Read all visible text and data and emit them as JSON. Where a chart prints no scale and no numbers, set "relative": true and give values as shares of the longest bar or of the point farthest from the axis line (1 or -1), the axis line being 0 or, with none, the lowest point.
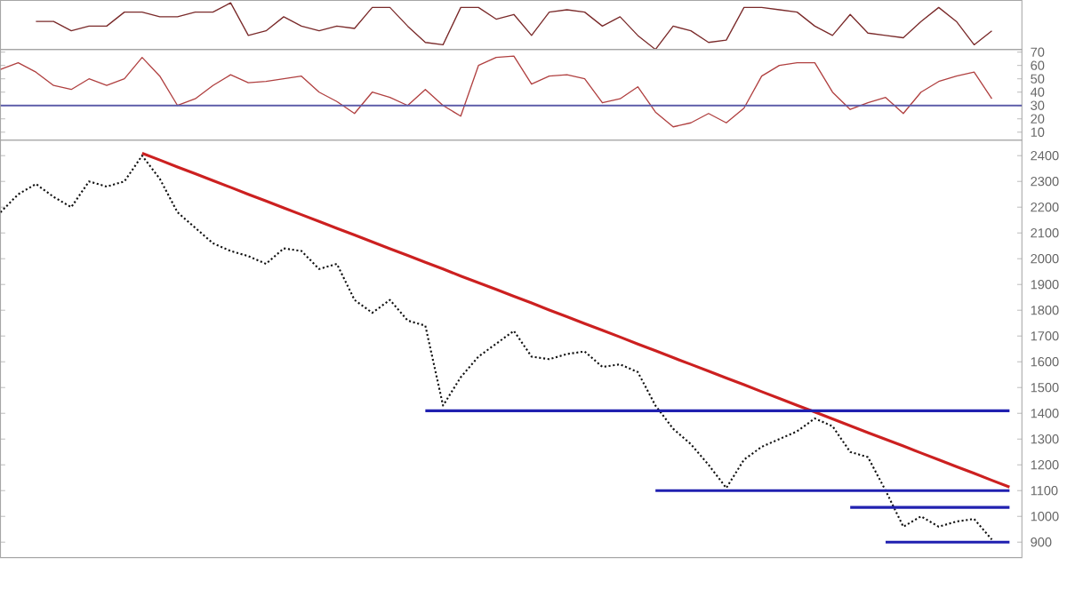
{
  "chart_data": [
    {
      "type": "line",
      "relative": true,
      "tick_labels": false,
      "categories": [
        null,
        null,
        null,
        null,
        null,
        null,
        null,
        null,
        null,
        null,
        null,
        null,
        null,
        null,
        null,
        null,
        null,
        null,
        null,
        null,
        null,
        null,
        null,
        null,
        null,
        null,
        null,
        null,
        null,
        null,
        null,
        null,
        null,
        null,
        null,
        null,
        null,
        null,
        null,
        null,
        null,
        null,
        null,
        null,
        null,
        null,
        null,
        null,
        null,
        null,
        null,
        null,
        null,
        null,
        null,
        null,
        null,
        null
      ],
      "series": [
        {
          "color": "#7a2a2a",
          "values": [
            null,
            null,
            0.6,
            0.6,
            0.4,
            0.5,
            0.5,
            0.8,
            0.8,
            0.7,
            0.7,
            0.8,
            0.8,
            1.0,
            0.3,
            0.4,
            0.7,
            0.5,
            0.4,
            0.5,
            0.45,
            0.9,
            0.9,
            0.5,
            0.15,
            0.1,
            0.9,
            0.9,
            0.65,
            0.75,
            0.3,
            0.8,
            0.85,
            0.8,
            0.5,
            0.7,
            0.3,
            0,
            0.5,
            0.4,
            0.15,
            0.2,
            0.9,
            0.9,
            0.85,
            0.8,
            0.5,
            0.3,
            0.75,
            0.35,
            0.3,
            0.25,
            0.6,
            0.9,
            0.6,
            0.1,
            0.4,
            null
          ]
        }
      ]
    },
    {
      "type": "line",
      "tick_labels": "y",
      "ylim": [
        4,
        72
      ],
      "yticks": [
        10,
        20,
        30,
        40,
        50,
        60,
        70
      ],
      "categories": [
        null,
        null,
        null,
        null,
        null,
        null,
        null,
        null,
        null,
        null,
        null,
        null,
        null,
        null,
        null,
        null,
        null,
        null,
        null,
        null,
        null,
        null,
        null,
        null,
        null,
        null,
        null,
        null,
        null,
        null,
        null,
        null,
        null,
        null,
        null,
        null,
        null,
        null,
        null,
        null,
        null,
        null,
        null,
        null,
        null,
        null,
        null,
        null,
        null,
        null,
        null,
        null,
        null,
        null,
        null,
        null,
        null,
        null
      ],
      "ref_lines": [
        {
          "axis": "y",
          "value": 30,
          "color": "#5a5aa8"
        }
      ],
      "series": [
        {
          "color": "#b04040",
          "values": [
            57,
            62,
            55,
            45,
            42,
            50,
            45,
            50,
            66,
            52,
            30,
            35,
            45,
            53,
            47,
            48,
            50,
            52,
            40,
            33,
            24,
            40,
            36,
            30,
            42,
            30,
            22,
            60,
            66,
            67,
            46,
            52,
            53,
            50,
            32,
            35,
            44,
            25,
            14,
            17,
            24,
            17,
            28,
            52,
            60,
            62,
            62,
            40,
            27,
            32,
            36,
            24,
            40,
            48,
            52,
            55,
            35,
            null
          ]
        }
      ]
    },
    {
      "type": "line",
      "tick_labels": "y",
      "ylim": [
        840,
        2460
      ],
      "yticks": [
        900,
        1000,
        1100,
        1200,
        1300,
        1400,
        1500,
        1600,
        1700,
        1800,
        1900,
        2000,
        2100,
        2200,
        2300,
        2400
      ],
      "categories": [
        null,
        null,
        null,
        null,
        null,
        null,
        null,
        null,
        null,
        null,
        null,
        null,
        null,
        null,
        null,
        null,
        null,
        null,
        null,
        null,
        null,
        null,
        null,
        null,
        null,
        null,
        null,
        null,
        null,
        null,
        null,
        null,
        null,
        null,
        null,
        null,
        null,
        null,
        null,
        null,
        null,
        null,
        null,
        null,
        null,
        null,
        null,
        null,
        null,
        null,
        null,
        null,
        null,
        null,
        null,
        null,
        null,
        null
      ],
      "series": [
        {
          "color": "#111111",
          "line_style": "dotted",
          "values": [
            2180,
            2250,
            2290,
            2240,
            2200,
            2300,
            2280,
            2300,
            2400,
            2310,
            2180,
            2120,
            2060,
            2030,
            2010,
            1980,
            2040,
            2030,
            1960,
            1980,
            1840,
            1790,
            1840,
            1760,
            1740,
            1430,
            1540,
            1620,
            1670,
            1720,
            1620,
            1610,
            1630,
            1640,
            1580,
            1590,
            1560,
            1430,
            1340,
            1280,
            1200,
            1110,
            1220,
            1270,
            1300,
            1330,
            1380,
            1350,
            1250,
            1230,
            1100,
            960,
            1000,
            960,
            980,
            990,
            910,
            null
          ]
        },
        {
          "color": "#cc2020",
          "values": [
            null,
            null,
            null,
            null,
            null,
            null,
            null,
            null,
            2409,
            2383,
            2356,
            2330,
            2303,
            2277,
            2250,
            2224,
            2197,
            2171,
            2145,
            2118,
            2092,
            2065,
            2039,
            2013,
            1986,
            1960,
            1933,
            1907,
            1881,
            1854,
            1828,
            1801,
            1775,
            1748,
            1722,
            1696,
            1669,
            1643,
            1616,
            1590,
            1564,
            1537,
            1511,
            1484,
            1458,
            1431,
            1405,
            1378,
            1352,
            1325,
            1299,
            1273,
            1246,
            1220,
            1193,
            1167,
            1140,
            1114
          ]
        },
        {
          "color": "#2020b0",
          "values": [
            null,
            null,
            null,
            null,
            null,
            null,
            null,
            null,
            null,
            null,
            null,
            null,
            null,
            null,
            null,
            null,
            null,
            null,
            null,
            null,
            null,
            null,
            null,
            null,
            1410,
            1410,
            1410,
            1410,
            1410,
            1410,
            1410,
            1410,
            1410,
            1410,
            1410,
            1410,
            1410,
            1410,
            1410,
            1410,
            1410,
            1410,
            1410,
            1410,
            1410,
            1410,
            1410,
            1410,
            1410,
            1410,
            1410,
            1410,
            1410,
            1410,
            1410,
            1410,
            1410,
            1410
          ]
        },
        {
          "color": "#2020b0",
          "values": [
            null,
            null,
            null,
            null,
            null,
            null,
            null,
            null,
            null,
            null,
            null,
            null,
            null,
            null,
            null,
            null,
            null,
            null,
            null,
            null,
            null,
            null,
            null,
            null,
            null,
            null,
            null,
            null,
            null,
            null,
            null,
            null,
            null,
            null,
            null,
            null,
            null,
            1100,
            1100,
            1100,
            1100,
            1100,
            1100,
            1100,
            1100,
            1100,
            1100,
            1100,
            1100,
            1100,
            1100,
            1100,
            1100,
            1100,
            1100,
            1100,
            1100,
            1100
          ]
        },
        {
          "color": "#2020b0",
          "values": [
            null,
            null,
            null,
            null,
            null,
            null,
            null,
            null,
            null,
            null,
            null,
            null,
            null,
            null,
            null,
            null,
            null,
            null,
            null,
            null,
            null,
            null,
            null,
            null,
            null,
            null,
            null,
            null,
            null,
            null,
            null,
            null,
            null,
            null,
            null,
            null,
            null,
            null,
            null,
            null,
            null,
            null,
            null,
            null,
            null,
            null,
            null,
            null,
            1035,
            1035,
            1035,
            1035,
            1035,
            1035,
            1035,
            1035,
            1035,
            1035
          ]
        },
        {
          "color": "#2020b0",
          "values": [
            null,
            null,
            null,
            null,
            null,
            null,
            null,
            null,
            null,
            null,
            null,
            null,
            null,
            null,
            null,
            null,
            null,
            null,
            null,
            null,
            null,
            null,
            null,
            null,
            null,
            null,
            null,
            null,
            null,
            null,
            null,
            null,
            null,
            null,
            null,
            null,
            null,
            null,
            null,
            null,
            null,
            null,
            null,
            null,
            null,
            null,
            null,
            null,
            null,
            null,
            900,
            900,
            900,
            900,
            900,
            900,
            900,
            900
          ]
        }
      ]
    }
  ]
}
